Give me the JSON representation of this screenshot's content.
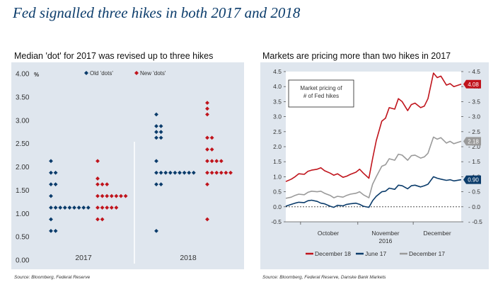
{
  "title": "Fed signalled three hikes in both 2017 and 2018",
  "colors": {
    "title": "#0b3c6b",
    "old_dots": "#0b3c6b",
    "new_dots": "#c0141c",
    "dec18": "#c0141c",
    "jun17": "#0b3c6b",
    "dec17": "#9a9a9a"
  },
  "chart_data": [
    {
      "type": "scatter",
      "title": "Median 'dot' for 2017 was revised up to three hikes",
      "ylabel": "%",
      "ylim": [
        0,
        4
      ],
      "yticks": [
        "0.00",
        "0.50",
        "1.00",
        "1.50",
        "2.00",
        "2.50",
        "3.00",
        "3.50",
        "4.00"
      ],
      "categories": [
        "2017",
        "2018"
      ],
      "legend": [
        "Old 'dots'",
        "New 'dots'"
      ],
      "legend_position": "top",
      "grid": false,
      "series": [
        {
          "name": "Old 'dots'",
          "groups": [
            {
              "category": "2017",
              "levels": [
                {
                  "y": 2.125,
                  "n": 1
                },
                {
                  "y": 1.875,
                  "n": 2
                },
                {
                  "y": 1.625,
                  "n": 2
                },
                {
                  "y": 1.375,
                  "n": 1
                },
                {
                  "y": 1.125,
                  "n": 9
                },
                {
                  "y": 0.875,
                  "n": 1
                },
                {
                  "y": 0.625,
                  "n": 2
                }
              ]
            },
            {
              "category": "2018",
              "levels": [
                {
                  "y": 3.125,
                  "n": 1
                },
                {
                  "y": 2.875,
                  "n": 2
                },
                {
                  "y": 2.75,
                  "n": 2
                },
                {
                  "y": 2.625,
                  "n": 2
                },
                {
                  "y": 2.125,
                  "n": 1
                },
                {
                  "y": 1.875,
                  "n": 9
                },
                {
                  "y": 1.625,
                  "n": 2
                },
                {
                  "y": 0.625,
                  "n": 1
                }
              ]
            }
          ]
        },
        {
          "name": "New 'dots'",
          "groups": [
            {
              "category": "2017",
              "levels": [
                {
                  "y": 2.125,
                  "n": 1
                },
                {
                  "y": 1.75,
                  "n": 1
                },
                {
                  "y": 1.625,
                  "n": 3
                },
                {
                  "y": 1.375,
                  "n": 7
                },
                {
                  "y": 1.125,
                  "n": 5
                },
                {
                  "y": 0.875,
                  "n": 2
                }
              ]
            },
            {
              "category": "2018",
              "levels": [
                {
                  "y": 3.375,
                  "n": 1
                },
                {
                  "y": 3.25,
                  "n": 1
                },
                {
                  "y": 3.125,
                  "n": 1
                },
                {
                  "y": 2.625,
                  "n": 2
                },
                {
                  "y": 2.375,
                  "n": 2
                },
                {
                  "y": 2.125,
                  "n": 4
                },
                {
                  "y": 1.875,
                  "n": 6
                },
                {
                  "y": 1.625,
                  "n": 1
                },
                {
                  "y": 0.875,
                  "n": 1
                }
              ]
            }
          ]
        }
      ],
      "source": "Source: Bloomberg, Federal Reserve"
    },
    {
      "type": "line",
      "title": "Markets are pricing more than two hikes in 2017",
      "ylim": [
        -0.5,
        4.5
      ],
      "yticks": [
        "-0.5",
        "0.0",
        "0.5",
        "1.0",
        "1.5",
        "2.0",
        "2.5",
        "3.0",
        "3.5",
        "4.0",
        "4.5"
      ],
      "xlim": [
        "2016-09-23",
        "2016-12-27"
      ],
      "xlabels": [
        "October",
        "November\n2016",
        "December"
      ],
      "zero_line": "dotted",
      "annotation": "Market pricing of\n# of Fed hikes",
      "legend": [
        "December 18",
        "June 17",
        "December 17"
      ],
      "legend_position": "bottom",
      "series": [
        {
          "name": "December 18",
          "end_label": "4.08",
          "points": [
            [
              "2016-09-23",
              0.84
            ],
            [
              "2016-09-26",
              0.92
            ],
            [
              "2016-09-28",
              1.0
            ],
            [
              "2016-09-30",
              1.1
            ],
            [
              "2016-10-03",
              1.08
            ],
            [
              "2016-10-05",
              1.18
            ],
            [
              "2016-10-07",
              1.22
            ],
            [
              "2016-10-10",
              1.25
            ],
            [
              "2016-10-12",
              1.3
            ],
            [
              "2016-10-14",
              1.2
            ],
            [
              "2016-10-17",
              1.12
            ],
            [
              "2016-10-19",
              1.05
            ],
            [
              "2016-10-21",
              1.1
            ],
            [
              "2016-10-24",
              0.98
            ],
            [
              "2016-10-26",
              1.02
            ],
            [
              "2016-10-28",
              1.08
            ],
            [
              "2016-10-31",
              1.15
            ],
            [
              "2016-11-02",
              1.25
            ],
            [
              "2016-11-04",
              1.12
            ],
            [
              "2016-11-07",
              0.95
            ],
            [
              "2016-11-09",
              1.6
            ],
            [
              "2016-11-11",
              2.2
            ],
            [
              "2016-11-14",
              2.85
            ],
            [
              "2016-11-16",
              2.95
            ],
            [
              "2016-11-18",
              3.3
            ],
            [
              "2016-11-21",
              3.25
            ],
            [
              "2016-11-23",
              3.6
            ],
            [
              "2016-11-25",
              3.5
            ],
            [
              "2016-11-28",
              3.2
            ],
            [
              "2016-11-30",
              3.4
            ],
            [
              "2016-12-02",
              3.45
            ],
            [
              "2016-12-05",
              3.3
            ],
            [
              "2016-12-07",
              3.35
            ],
            [
              "2016-12-09",
              3.6
            ],
            [
              "2016-12-12",
              4.45
            ],
            [
              "2016-12-14",
              4.3
            ],
            [
              "2016-12-16",
              4.35
            ],
            [
              "2016-12-19",
              4.05
            ],
            [
              "2016-12-21",
              4.1
            ],
            [
              "2016-12-23",
              4.0
            ],
            [
              "2016-12-27",
              4.08
            ]
          ]
        },
        {
          "name": "June 17",
          "end_label": "0.90",
          "points": [
            [
              "2016-09-23",
              0.02
            ],
            [
              "2016-09-26",
              0.08
            ],
            [
              "2016-09-28",
              0.12
            ],
            [
              "2016-09-30",
              0.15
            ],
            [
              "2016-10-03",
              0.14
            ],
            [
              "2016-10-05",
              0.2
            ],
            [
              "2016-10-07",
              0.22
            ],
            [
              "2016-10-10",
              0.18
            ],
            [
              "2016-10-12",
              0.12
            ],
            [
              "2016-10-14",
              0.1
            ],
            [
              "2016-10-17",
              0.02
            ],
            [
              "2016-10-19",
              -0.02
            ],
            [
              "2016-10-21",
              0.05
            ],
            [
              "2016-10-24",
              0.03
            ],
            [
              "2016-10-26",
              0.08
            ],
            [
              "2016-10-28",
              0.1
            ],
            [
              "2016-10-31",
              0.12
            ],
            [
              "2016-11-02",
              0.08
            ],
            [
              "2016-11-04",
              0.02
            ],
            [
              "2016-11-07",
              -0.02
            ],
            [
              "2016-11-09",
              0.2
            ],
            [
              "2016-11-11",
              0.35
            ],
            [
              "2016-11-14",
              0.5
            ],
            [
              "2016-11-16",
              0.52
            ],
            [
              "2016-11-18",
              0.62
            ],
            [
              "2016-11-21",
              0.58
            ],
            [
              "2016-11-23",
              0.72
            ],
            [
              "2016-11-25",
              0.7
            ],
            [
              "2016-11-28",
              0.6
            ],
            [
              "2016-11-30",
              0.7
            ],
            [
              "2016-12-02",
              0.72
            ],
            [
              "2016-12-05",
              0.66
            ],
            [
              "2016-12-07",
              0.7
            ],
            [
              "2016-12-09",
              0.75
            ],
            [
              "2016-12-12",
              1.0
            ],
            [
              "2016-12-14",
              0.95
            ],
            [
              "2016-12-16",
              0.92
            ],
            [
              "2016-12-19",
              0.88
            ],
            [
              "2016-12-21",
              0.9
            ],
            [
              "2016-12-23",
              0.86
            ],
            [
              "2016-12-27",
              0.9
            ]
          ]
        },
        {
          "name": "December 17",
          "end_label": "2.18",
          "points": [
            [
              "2016-09-23",
              0.28
            ],
            [
              "2016-09-26",
              0.32
            ],
            [
              "2016-09-28",
              0.38
            ],
            [
              "2016-09-30",
              0.42
            ],
            [
              "2016-10-03",
              0.4
            ],
            [
              "2016-10-05",
              0.48
            ],
            [
              "2016-10-07",
              0.52
            ],
            [
              "2016-10-10",
              0.5
            ],
            [
              "2016-10-12",
              0.52
            ],
            [
              "2016-10-14",
              0.45
            ],
            [
              "2016-10-17",
              0.38
            ],
            [
              "2016-10-19",
              0.3
            ],
            [
              "2016-10-21",
              0.35
            ],
            [
              "2016-10-24",
              0.32
            ],
            [
              "2016-10-26",
              0.38
            ],
            [
              "2016-10-28",
              0.42
            ],
            [
              "2016-10-31",
              0.45
            ],
            [
              "2016-11-02",
              0.5
            ],
            [
              "2016-11-04",
              0.4
            ],
            [
              "2016-11-07",
              0.3
            ],
            [
              "2016-11-09",
              0.75
            ],
            [
              "2016-11-11",
              1.0
            ],
            [
              "2016-11-14",
              1.35
            ],
            [
              "2016-11-16",
              1.4
            ],
            [
              "2016-11-18",
              1.6
            ],
            [
              "2016-11-21",
              1.55
            ],
            [
              "2016-11-23",
              1.75
            ],
            [
              "2016-11-25",
              1.72
            ],
            [
              "2016-11-28",
              1.55
            ],
            [
              "2016-11-30",
              1.7
            ],
            [
              "2016-12-02",
              1.72
            ],
            [
              "2016-12-05",
              1.62
            ],
            [
              "2016-12-07",
              1.66
            ],
            [
              "2016-12-09",
              1.78
            ],
            [
              "2016-12-12",
              2.32
            ],
            [
              "2016-12-14",
              2.25
            ],
            [
              "2016-12-16",
              2.3
            ],
            [
              "2016-12-19",
              2.12
            ],
            [
              "2016-12-21",
              2.18
            ],
            [
              "2016-12-23",
              2.1
            ],
            [
              "2016-12-27",
              2.18
            ]
          ]
        }
      ],
      "source": "Source: Bloomberg, Federal Reserve, Danske Bank Markets"
    }
  ]
}
